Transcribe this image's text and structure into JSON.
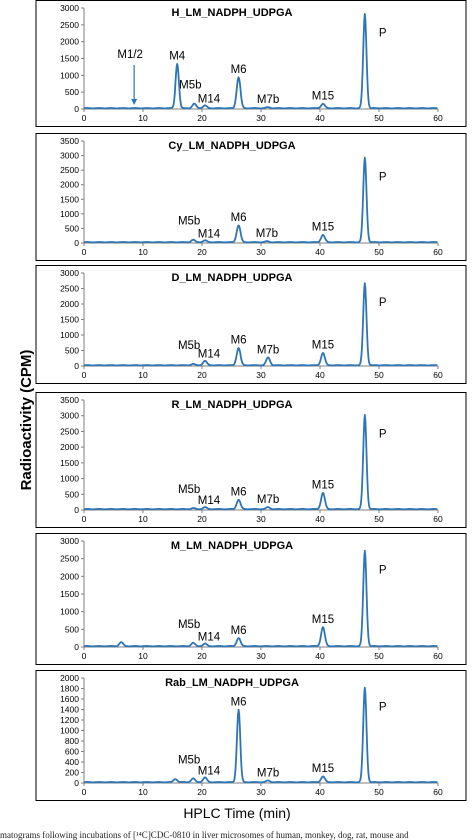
{
  "figure": {
    "ylabel": "Radioactivity (CPM)",
    "xlabel": "HPLC Time (min)",
    "caption": "matograms following incubations of [¹⁴C]CDC-0810 in liver microsomes of human, monkey, dog, rat, mouse and",
    "line_color": "#2e75b6"
  },
  "chart_data": [
    {
      "type": "line",
      "title": "H_LM_NADPH_UDPGA",
      "xlim": [
        0,
        60
      ],
      "ylim": [
        0,
        3000
      ],
      "xticks": [
        0,
        10,
        20,
        30,
        40,
        50,
        60
      ],
      "yticks": [
        0,
        500,
        1000,
        1500,
        2000,
        2500,
        3000
      ],
      "peaks": [
        {
          "x": 15.8,
          "y": 1320,
          "label": "M4"
        },
        {
          "x": 18.7,
          "y": 130,
          "label": "M5b"
        },
        {
          "x": 20.5,
          "y": 80,
          "label": "M14"
        },
        {
          "x": 26.2,
          "y": 920,
          "label": "M6"
        },
        {
          "x": 31.2,
          "y": 30,
          "label": "M7b"
        },
        {
          "x": 40.5,
          "y": 130,
          "label": "M15"
        },
        {
          "x": 47.6,
          "y": 2800,
          "label": "P"
        }
      ],
      "annotations": [
        {
          "text": "M1/2",
          "x": 8.5,
          "arrow": true
        }
      ]
    },
    {
      "type": "line",
      "title": "Cy_LM_NADPH_UDPGA",
      "xlim": [
        0,
        60
      ],
      "ylim": [
        0,
        3500
      ],
      "xticks": [
        0,
        10,
        20,
        30,
        40,
        50,
        60
      ],
      "yticks": [
        0,
        500,
        1000,
        1500,
        2000,
        2500,
        3000,
        3500
      ],
      "peaks": [
        {
          "x": 18.5,
          "y": 80,
          "label": "M5b"
        },
        {
          "x": 20.5,
          "y": 60,
          "label": "M14"
        },
        {
          "x": 26.2,
          "y": 580,
          "label": "M6"
        },
        {
          "x": 31.0,
          "y": 30,
          "label": "M7b"
        },
        {
          "x": 40.5,
          "y": 250,
          "label": "M15"
        },
        {
          "x": 47.6,
          "y": 2900,
          "label": "P"
        }
      ],
      "annotations": []
    },
    {
      "type": "line",
      "title": "D_LM_NADPH_UDPGA",
      "xlim": [
        0,
        60
      ],
      "ylim": [
        0,
        3000
      ],
      "xticks": [
        0,
        10,
        20,
        30,
        40,
        50,
        60
      ],
      "yticks": [
        0,
        500,
        1000,
        1500,
        2000,
        2500,
        3000
      ],
      "peaks": [
        {
          "x": 18.5,
          "y": 40,
          "label": "M5b"
        },
        {
          "x": 20.5,
          "y": 140,
          "label": "M14"
        },
        {
          "x": 26.2,
          "y": 560,
          "label": "M6"
        },
        {
          "x": 31.2,
          "y": 250,
          "label": "M7b"
        },
        {
          "x": 40.5,
          "y": 400,
          "label": "M15"
        },
        {
          "x": 47.6,
          "y": 2650,
          "label": "P"
        }
      ],
      "annotations": []
    },
    {
      "type": "line",
      "title": "R_LM_NADPH_UDPGA",
      "xlim": [
        0,
        60
      ],
      "ylim": [
        0,
        3500
      ],
      "xticks": [
        0,
        10,
        20,
        30,
        40,
        50,
        60
      ],
      "yticks": [
        0,
        500,
        1000,
        1500,
        2000,
        2500,
        3000,
        3500
      ],
      "peaks": [
        {
          "x": 18.5,
          "y": 30,
          "label": "M5b"
        },
        {
          "x": 20.5,
          "y": 60,
          "label": "M14"
        },
        {
          "x": 26.2,
          "y": 300,
          "label": "M6"
        },
        {
          "x": 31.2,
          "y": 60,
          "label": "M7b"
        },
        {
          "x": 40.5,
          "y": 520,
          "label": "M15"
        },
        {
          "x": 47.6,
          "y": 3000,
          "label": "P"
        }
      ],
      "annotations": []
    },
    {
      "type": "line",
      "title": "M_LM_NADPH_UDPGA",
      "xlim": [
        0,
        60
      ],
      "ylim": [
        0,
        3000
      ],
      "xticks": [
        0,
        10,
        20,
        30,
        40,
        50,
        60
      ],
      "yticks": [
        0,
        500,
        1000,
        1500,
        2000,
        2500,
        3000
      ],
      "peaks": [
        {
          "x": 6.3,
          "y": 110,
          "label": ""
        },
        {
          "x": 18.5,
          "y": 90,
          "label": "M5b"
        },
        {
          "x": 20.5,
          "y": 70,
          "label": "M14"
        },
        {
          "x": 26.2,
          "y": 230,
          "label": "M6"
        },
        {
          "x": 40.5,
          "y": 540,
          "label": "M15"
        },
        {
          "x": 47.6,
          "y": 2700,
          "label": "P"
        }
      ],
      "annotations": []
    },
    {
      "type": "line",
      "title": "Rab_LM_NADPH_UDPGA",
      "xlim": [
        0,
        60
      ],
      "ylim": [
        0,
        2000
      ],
      "xticks": [
        0,
        10,
        20,
        30,
        40,
        50,
        60
      ],
      "yticks": [
        0,
        200,
        400,
        600,
        800,
        1000,
        1200,
        1400,
        1600,
        1800,
        2000
      ],
      "peaks": [
        {
          "x": 15.5,
          "y": 60,
          "label": ""
        },
        {
          "x": 18.5,
          "y": 70,
          "label": "M5b"
        },
        {
          "x": 20.5,
          "y": 90,
          "label": "M14"
        },
        {
          "x": 26.2,
          "y": 1380,
          "label": "M6"
        },
        {
          "x": 31.2,
          "y": 30,
          "label": "M7b"
        },
        {
          "x": 40.5,
          "y": 110,
          "label": "M15"
        },
        {
          "x": 47.6,
          "y": 1800,
          "label": "P"
        }
      ],
      "annotations": []
    }
  ]
}
